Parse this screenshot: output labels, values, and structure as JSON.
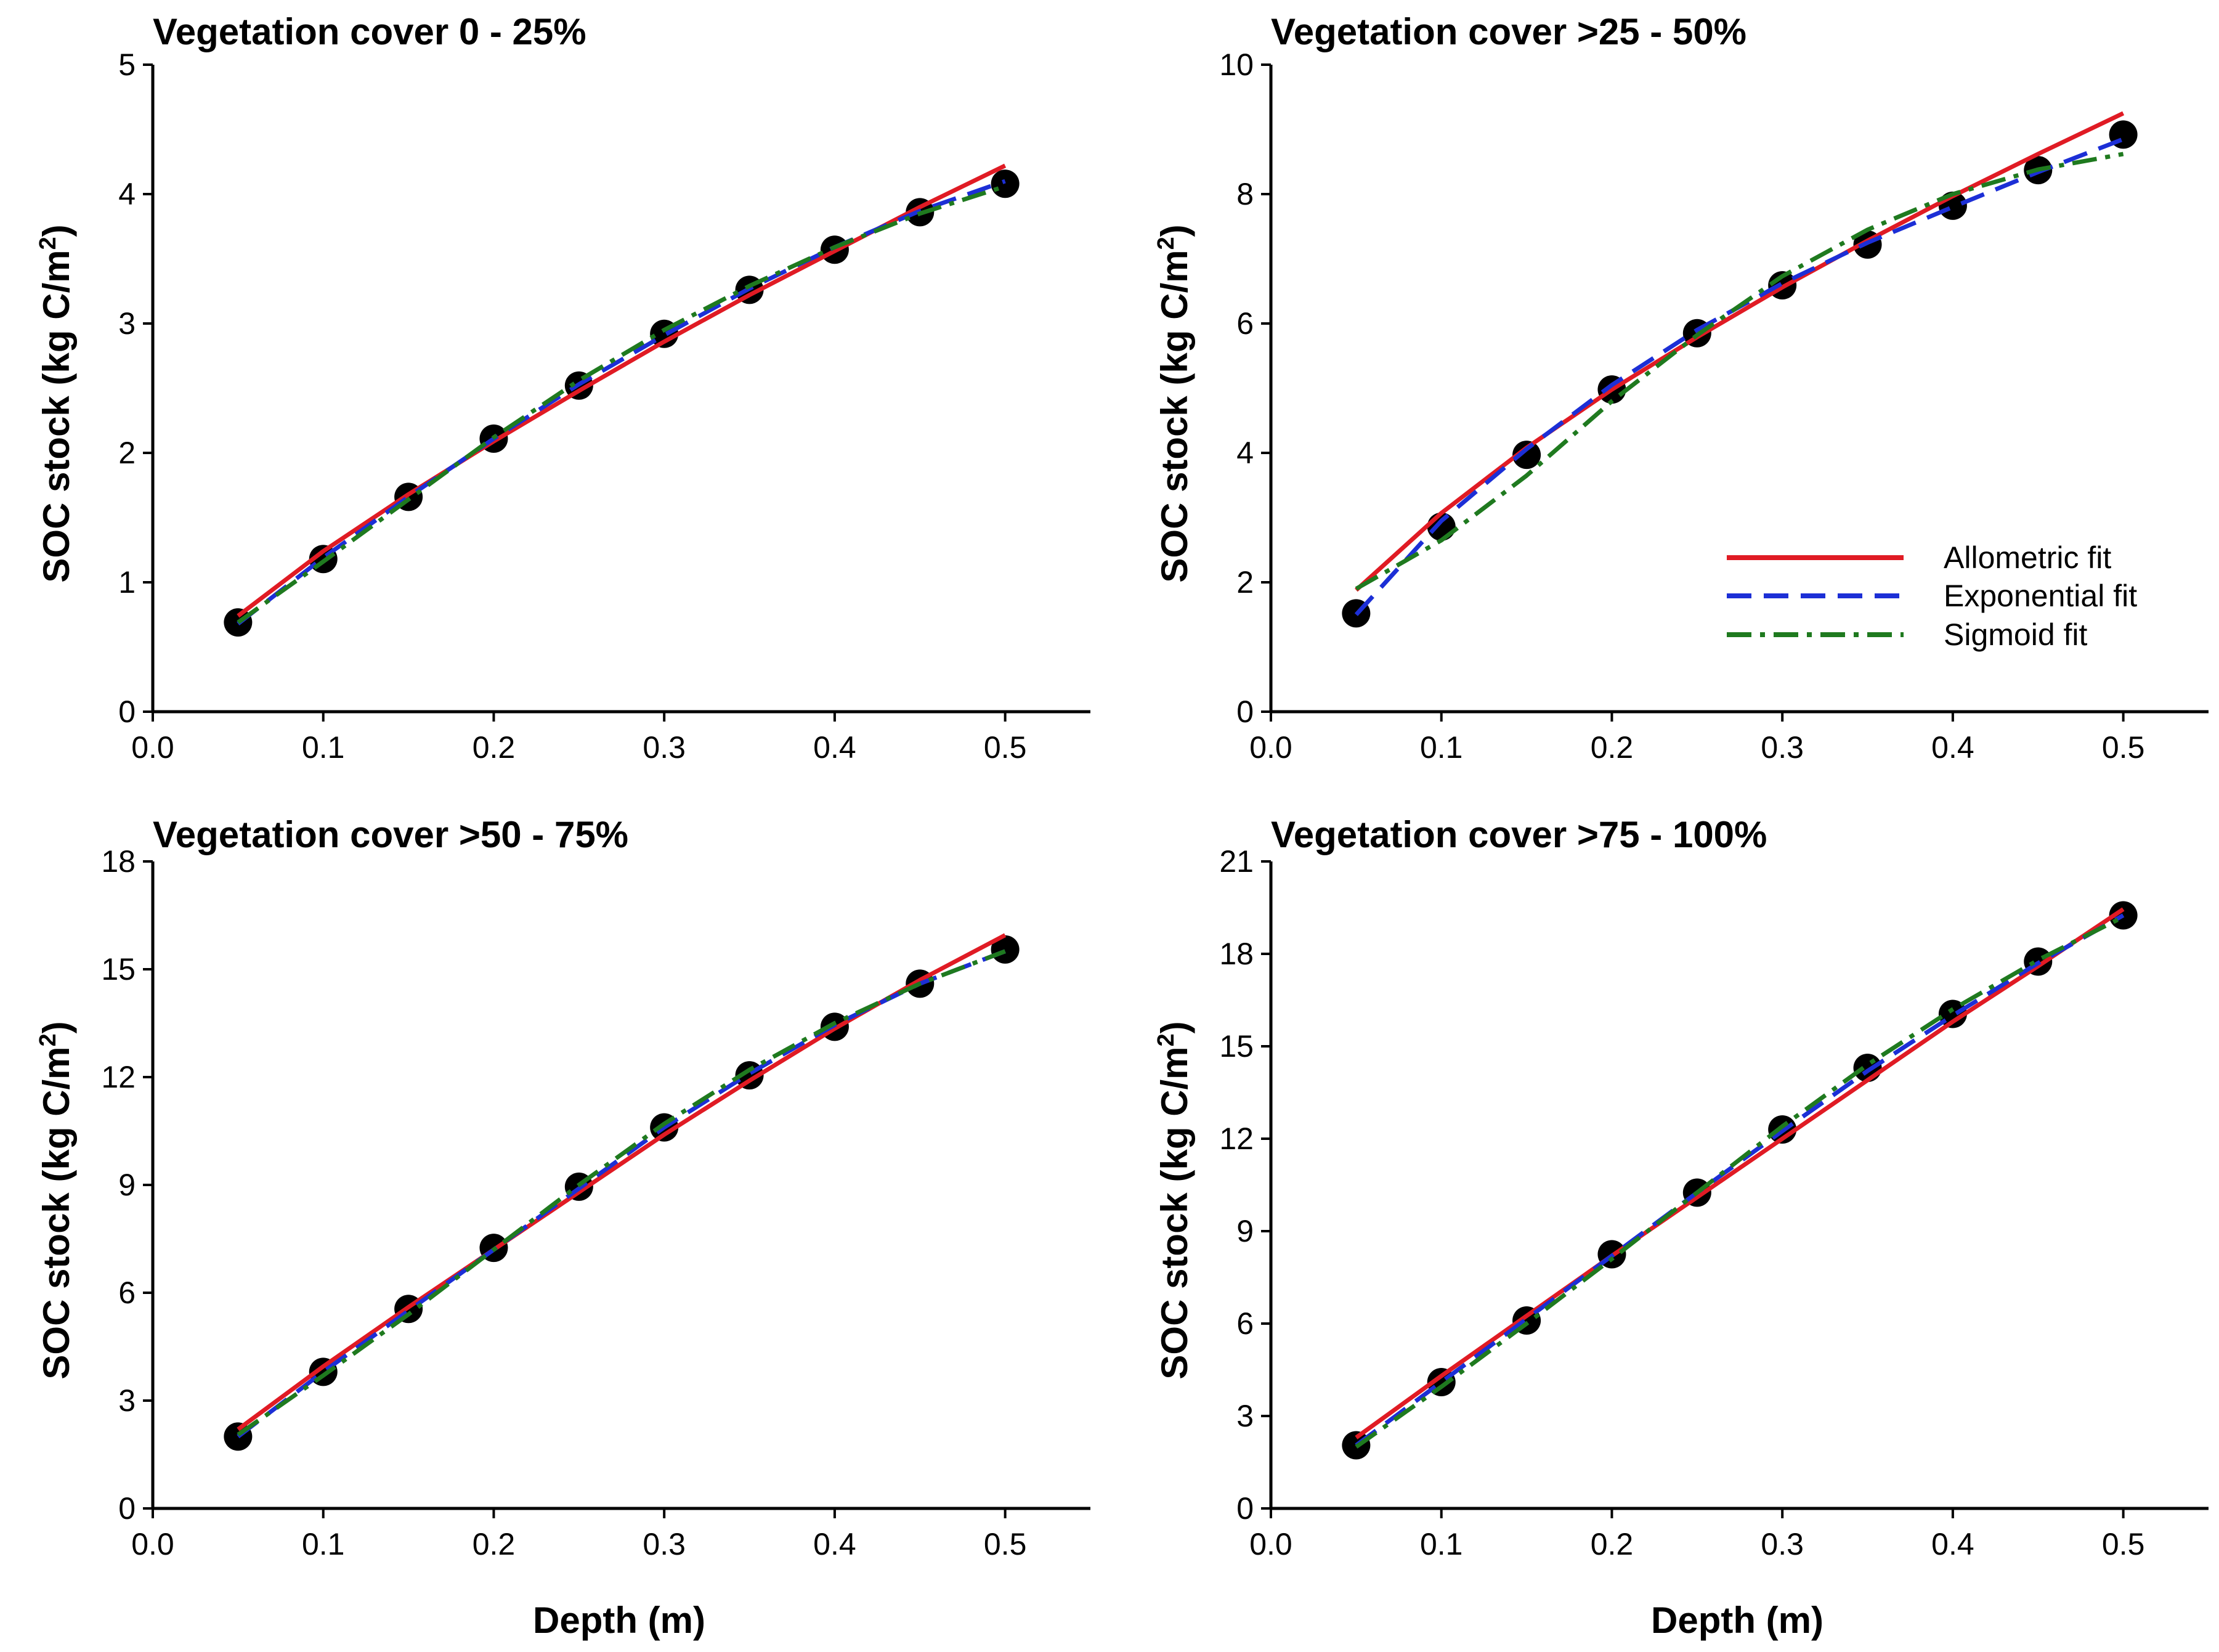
{
  "figure": {
    "xlabel": "Depth (m)",
    "ylabel_prefix": "SOC stock (kg C/m",
    "ylabel_superscript": "2",
    "ylabel_suffix": ")"
  },
  "legend": {
    "placement": "lower-right of top-right panel",
    "entries": [
      {
        "label": "Allometric fit",
        "color": "#e01b24",
        "dash": "solid"
      },
      {
        "label": "Exponential fit",
        "color": "#1c2fd6",
        "dash": "dashed"
      },
      {
        "label": "Sigmoid fit",
        "color": "#1f7a1f",
        "dash": "dashdot"
      }
    ]
  },
  "chart_data": [
    {
      "type": "line",
      "title": "Vegetation cover 0 - 25%",
      "xlabel": "Depth (m)",
      "ylabel": "SOC stock (kg C/m2)",
      "xlim": [
        0,
        0.55
      ],
      "ylim": [
        0,
        5
      ],
      "xticks": [
        "0.0",
        "0.1",
        "0.2",
        "0.3",
        "0.4",
        "0.5"
      ],
      "yticks": [
        "0",
        "1",
        "2",
        "3",
        "4",
        "5"
      ],
      "observed": {
        "name": "Observed",
        "x": [
          0.05,
          0.1,
          0.15,
          0.2,
          0.25,
          0.3,
          0.35,
          0.4,
          0.45,
          0.5
        ],
        "y": [
          0.69,
          1.18,
          1.66,
          2.11,
          2.52,
          2.92,
          3.26,
          3.57,
          3.86,
          4.08
        ]
      },
      "series": [
        {
          "name": "Allometric fit",
          "x": [
            0.05,
            0.1,
            0.15,
            0.2,
            0.25,
            0.3,
            0.35,
            0.4,
            0.45,
            0.5
          ],
          "y": [
            0.74,
            1.24,
            1.68,
            2.09,
            2.48,
            2.86,
            3.22,
            3.56,
            3.9,
            4.22
          ]
        },
        {
          "name": "Exponential fit",
          "x": [
            0.05,
            0.1,
            0.15,
            0.2,
            0.25,
            0.3,
            0.35,
            0.4,
            0.45,
            0.5
          ],
          "y": [
            0.68,
            1.19,
            1.66,
            2.11,
            2.53,
            2.91,
            3.27,
            3.59,
            3.87,
            4.1
          ]
        },
        {
          "name": "Sigmoid fit",
          "x": [
            0.05,
            0.1,
            0.15,
            0.2,
            0.25,
            0.3,
            0.35,
            0.4,
            0.45,
            0.5
          ],
          "y": [
            0.69,
            1.16,
            1.64,
            2.12,
            2.56,
            2.95,
            3.29,
            3.59,
            3.85,
            4.06
          ]
        }
      ]
    },
    {
      "type": "line",
      "title": "Vegetation cover >25 - 50%",
      "xlabel": "Depth (m)",
      "ylabel": "SOC stock (kg C/m2)",
      "xlim": [
        0,
        0.55
      ],
      "ylim": [
        0,
        10
      ],
      "xticks": [
        "0.0",
        "0.1",
        "0.2",
        "0.3",
        "0.4",
        "0.5"
      ],
      "yticks": [
        "0",
        "2",
        "4",
        "6",
        "8",
        "10"
      ],
      "observed": {
        "name": "Observed",
        "x": [
          0.05,
          0.1,
          0.15,
          0.2,
          0.25,
          0.3,
          0.35,
          0.4,
          0.45,
          0.5
        ],
        "y": [
          1.52,
          2.86,
          3.97,
          4.98,
          5.85,
          6.59,
          7.22,
          7.82,
          8.37,
          8.92
        ]
      },
      "series": [
        {
          "name": "Allometric fit",
          "x": [
            0.05,
            0.1,
            0.15,
            0.2,
            0.25,
            0.3,
            0.35,
            0.4,
            0.45,
            0.5
          ],
          "y": [
            1.88,
            3.07,
            4.08,
            4.98,
            5.79,
            6.56,
            7.28,
            7.97,
            8.62,
            9.25
          ]
        },
        {
          "name": "Exponential fit",
          "x": [
            0.05,
            0.1,
            0.15,
            0.2,
            0.25,
            0.3,
            0.35,
            0.4,
            0.45,
            0.5
          ],
          "y": [
            1.5,
            2.95,
            4.06,
            5.05,
            5.9,
            6.62,
            7.25,
            7.8,
            8.34,
            8.85
          ]
        },
        {
          "name": "Sigmoid fit",
          "x": [
            0.05,
            0.1,
            0.15,
            0.2,
            0.25,
            0.3,
            0.35,
            0.4,
            0.45,
            0.5
          ],
          "y": [
            1.9,
            2.65,
            3.65,
            4.8,
            5.82,
            6.73,
            7.45,
            8.0,
            8.38,
            8.62
          ]
        }
      ]
    },
    {
      "type": "line",
      "title": "Vegetation cover >50 - 75%",
      "xlabel": "Depth (m)",
      "ylabel": "SOC stock (kg C/m2)",
      "xlim": [
        0,
        0.55
      ],
      "ylim": [
        0,
        18
      ],
      "xticks": [
        "0.0",
        "0.1",
        "0.2",
        "0.3",
        "0.4",
        "0.5"
      ],
      "yticks": [
        "0",
        "3",
        "6",
        "9",
        "12",
        "15",
        "18"
      ],
      "observed": {
        "name": "Observed",
        "x": [
          0.05,
          0.1,
          0.15,
          0.2,
          0.25,
          0.3,
          0.35,
          0.4,
          0.45,
          0.5
        ],
        "y": [
          2.0,
          3.8,
          5.55,
          7.25,
          8.95,
          10.6,
          12.05,
          13.4,
          14.6,
          15.55
        ]
      },
      "series": [
        {
          "name": "Allometric fit",
          "x": [
            0.05,
            0.1,
            0.15,
            0.2,
            0.25,
            0.3,
            0.35,
            0.4,
            0.45,
            0.5
          ],
          "y": [
            2.2,
            3.95,
            5.6,
            7.2,
            8.8,
            10.4,
            11.9,
            13.35,
            14.7,
            15.95
          ]
        },
        {
          "name": "Exponential fit",
          "x": [
            0.05,
            0.1,
            0.15,
            0.2,
            0.25,
            0.3,
            0.35,
            0.4,
            0.45,
            0.5
          ],
          "y": [
            2.0,
            3.8,
            5.5,
            7.2,
            8.9,
            10.6,
            12.1,
            13.45,
            14.6,
            15.5
          ]
        },
        {
          "name": "Sigmoid fit",
          "x": [
            0.05,
            0.1,
            0.15,
            0.2,
            0.25,
            0.3,
            0.35,
            0.4,
            0.45,
            0.5
          ],
          "y": [
            2.05,
            3.7,
            5.4,
            7.2,
            9.0,
            10.7,
            12.2,
            13.5,
            14.6,
            15.5
          ]
        }
      ]
    },
    {
      "type": "line",
      "title": "Vegetation cover >75 - 100%",
      "xlabel": "Depth (m)",
      "ylabel": "SOC stock (kg C/m2)",
      "xlim": [
        0,
        0.55
      ],
      "ylim": [
        0,
        21
      ],
      "xticks": [
        "0.0",
        "0.1",
        "0.2",
        "0.3",
        "0.4",
        "0.5"
      ],
      "yticks": [
        "0",
        "3",
        "6",
        "9",
        "12",
        "15",
        "18",
        "21"
      ],
      "observed": {
        "name": "Observed",
        "x": [
          0.05,
          0.1,
          0.15,
          0.2,
          0.25,
          0.3,
          0.35,
          0.4,
          0.45,
          0.5
        ],
        "y": [
          2.05,
          4.1,
          6.1,
          8.25,
          10.25,
          12.3,
          14.3,
          16.05,
          17.75,
          19.25
        ]
      },
      "series": [
        {
          "name": "Allometric fit",
          "x": [
            0.05,
            0.1,
            0.15,
            0.2,
            0.25,
            0.3,
            0.35,
            0.4,
            0.45,
            0.5
          ],
          "y": [
            2.3,
            4.3,
            6.25,
            8.2,
            10.1,
            12.0,
            13.9,
            15.8,
            17.6,
            19.45
          ]
        },
        {
          "name": "Exponential fit",
          "x": [
            0.05,
            0.1,
            0.15,
            0.2,
            0.25,
            0.3,
            0.35,
            0.4,
            0.45,
            0.5
          ],
          "y": [
            2.05,
            4.1,
            6.15,
            8.2,
            10.25,
            12.25,
            14.2,
            16.0,
            17.7,
            19.25
          ]
        },
        {
          "name": "Sigmoid fit",
          "x": [
            0.05,
            0.1,
            0.15,
            0.2,
            0.25,
            0.3,
            0.35,
            0.4,
            0.45,
            0.5
          ],
          "y": [
            2.0,
            3.95,
            6.0,
            8.1,
            10.25,
            12.4,
            14.4,
            16.2,
            17.8,
            19.2
          ]
        }
      ]
    }
  ]
}
